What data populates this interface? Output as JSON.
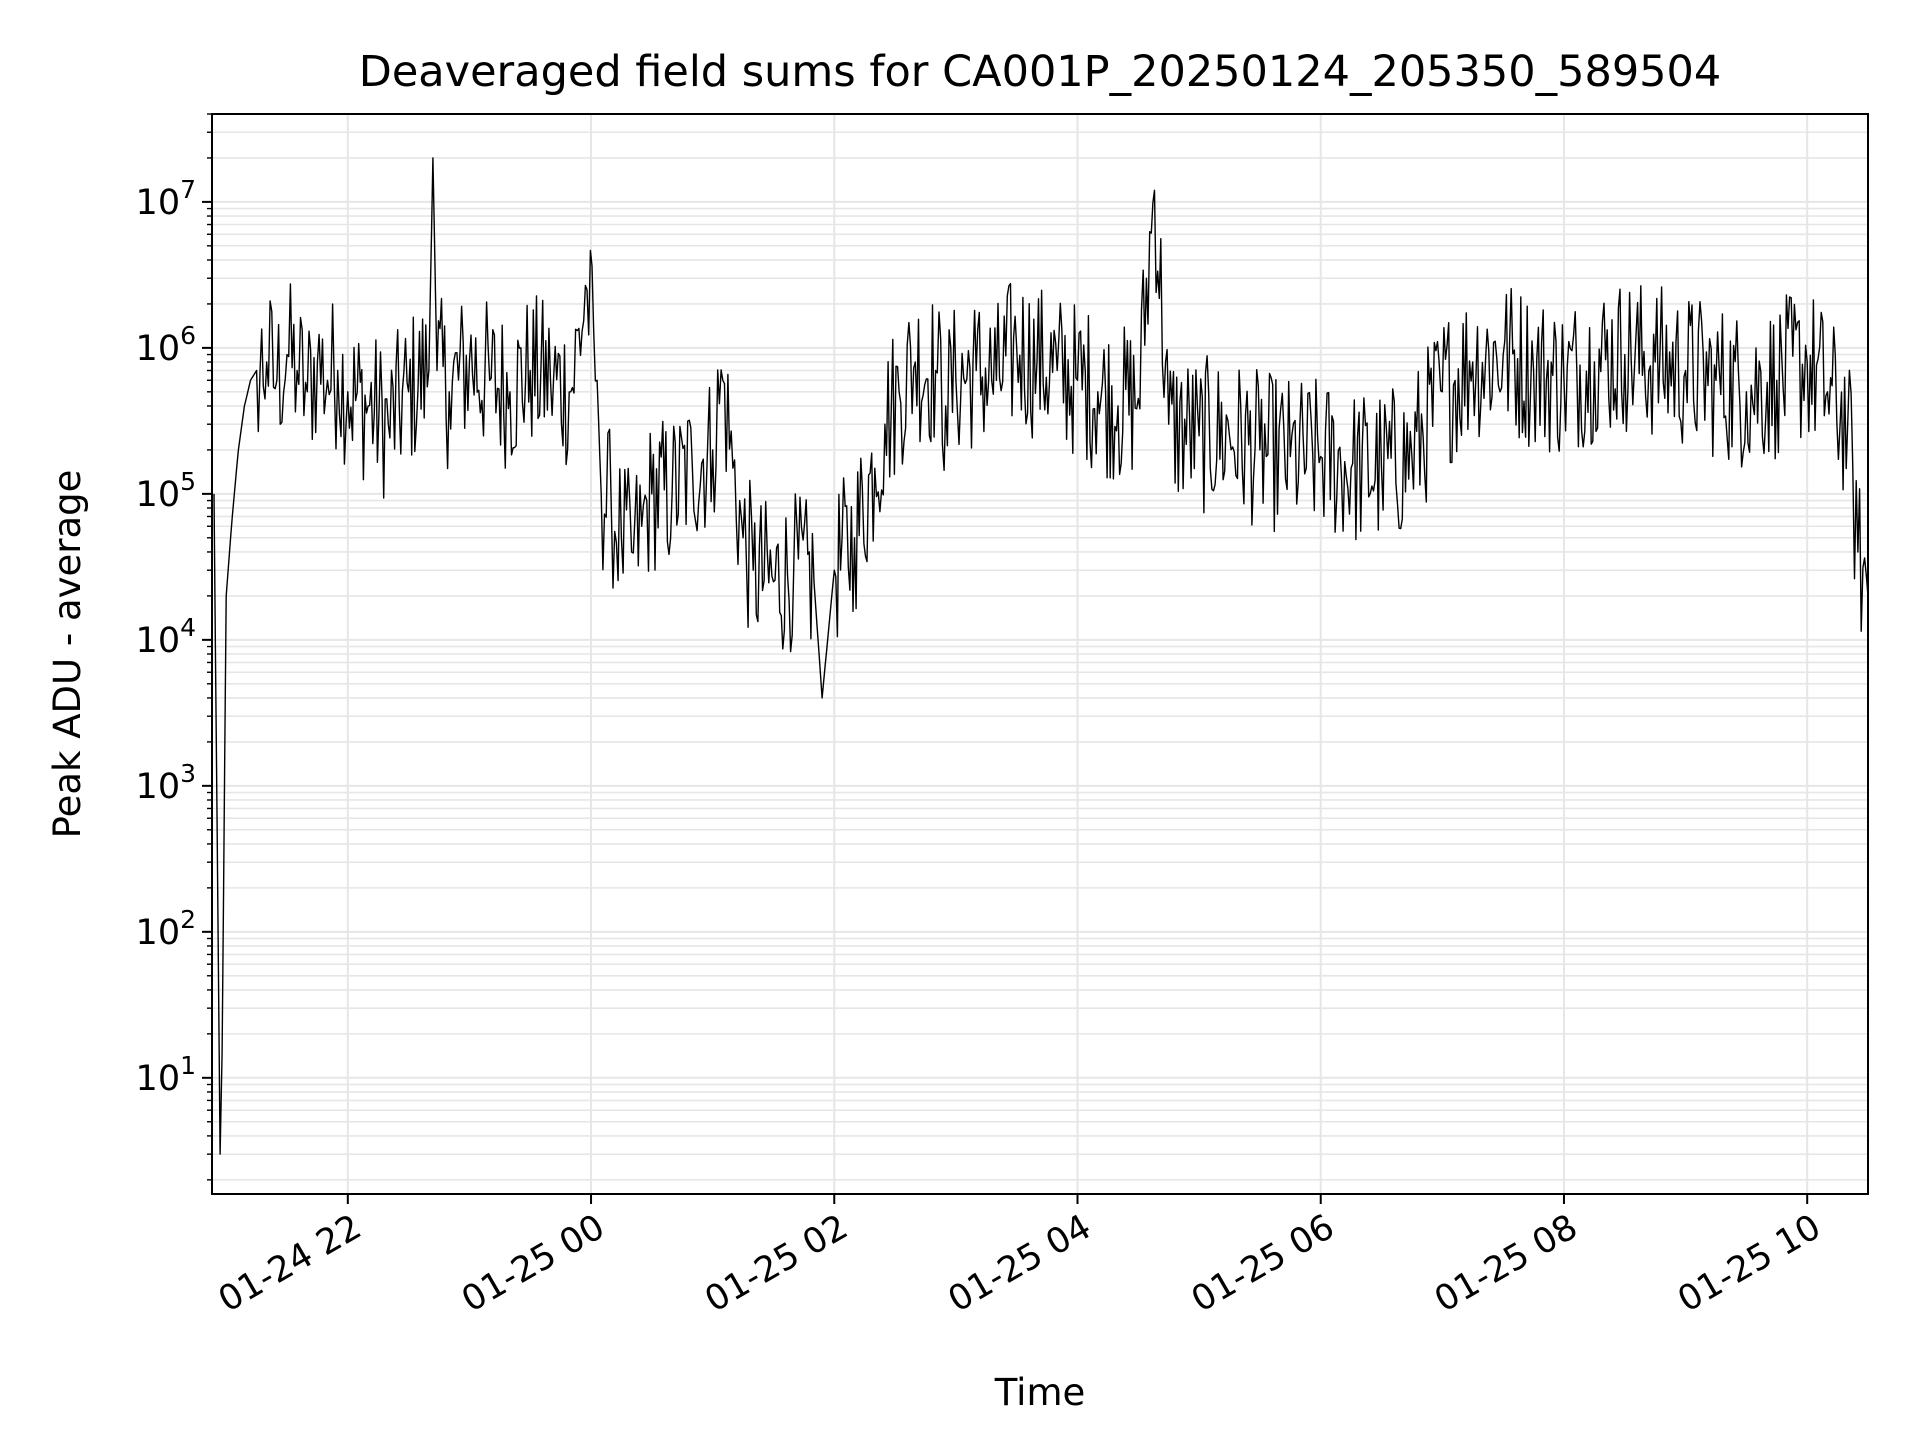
{
  "chart_data": {
    "type": "line",
    "title": "Deaveraged field sums for CA001P_20250124_205350_589504",
    "xlabel": "Time",
    "ylabel": "Peak ADU - average",
    "x_scale": "time",
    "y_scale": "log",
    "xlim": [
      "2025-01-24 20:53",
      "2025-01-25 10:30"
    ],
    "ylim": [
      1.6,
      40000000
    ],
    "grid": true,
    "legend": "none",
    "line_color": "#000000",
    "grid_color": "#e6e6e6",
    "x_ticks": [
      {
        "value": "2025-01-24 22:00",
        "label": "01-24 22"
      },
      {
        "value": "2025-01-25 00:00",
        "label": "01-25 00"
      },
      {
        "value": "2025-01-25 02:00",
        "label": "01-25 02"
      },
      {
        "value": "2025-01-25 04:00",
        "label": "01-25 04"
      },
      {
        "value": "2025-01-25 06:00",
        "label": "01-25 06"
      },
      {
        "value": "2025-01-25 08:00",
        "label": "01-25 08"
      },
      {
        "value": "2025-01-25 10:00",
        "label": "01-25 10"
      }
    ],
    "y_ticks": [
      {
        "value": 10,
        "base": "10",
        "exp": "1"
      },
      {
        "value": 100,
        "base": "10",
        "exp": "2"
      },
      {
        "value": 1000,
        "base": "10",
        "exp": "3"
      },
      {
        "value": 10000,
        "base": "10",
        "exp": "4"
      },
      {
        "value": 100000,
        "base": "10",
        "exp": "5"
      },
      {
        "value": 1000000,
        "base": "10",
        "exp": "6"
      },
      {
        "value": 10000000,
        "base": "10",
        "exp": "7"
      }
    ],
    "series": [
      {
        "x": [
          "2025-01-24 20:54",
          "2025-01-24 20:57",
          "2025-01-24 20:58",
          "2025-01-24 21:00",
          "2025-01-24 21:03",
          "2025-01-24 21:06",
          "2025-01-24 21:09",
          "2025-01-24 21:12",
          "2025-01-24 21:15",
          "2025-01-24 21:20",
          "2025-01-24 21:25",
          "2025-01-24 21:30",
          "2025-01-24 21:35",
          "2025-01-24 21:40",
          "2025-01-24 21:45",
          "2025-01-24 21:50",
          "2025-01-24 21:55",
          "2025-01-24 22:00",
          "2025-01-24 22:10",
          "2025-01-24 22:20",
          "2025-01-24 22:30",
          "2025-01-24 22:40",
          "2025-01-24 22:42",
          "2025-01-24 22:44",
          "2025-01-24 22:50",
          "2025-01-24 23:00",
          "2025-01-24 23:10",
          "2025-01-24 23:20",
          "2025-01-24 23:30",
          "2025-01-24 23:40",
          "2025-01-24 23:50",
          "2025-01-24 23:58",
          "2025-01-25 00:03",
          "2025-01-25 00:05",
          "2025-01-25 00:10",
          "2025-01-25 00:15",
          "2025-01-25 00:20",
          "2025-01-25 00:25",
          "2025-01-25 00:30",
          "2025-01-25 00:40",
          "2025-01-25 00:50",
          "2025-01-25 01:00",
          "2025-01-25 01:05",
          "2025-01-25 01:10",
          "2025-01-25 01:15",
          "2025-01-25 01:20",
          "2025-01-25 01:30",
          "2025-01-25 01:40",
          "2025-01-25 01:50",
          "2025-01-25 01:54",
          "2025-01-25 02:00",
          "2025-01-25 02:10",
          "2025-01-25 02:20",
          "2025-01-25 02:25",
          "2025-01-25 02:32",
          "2025-01-25 02:40",
          "2025-01-25 02:50",
          "2025-01-25 02:55",
          "2025-01-25 03:00",
          "2025-01-25 03:10",
          "2025-01-25 03:20",
          "2025-01-25 03:30",
          "2025-01-25 03:40",
          "2025-01-25 03:50",
          "2025-01-25 04:00",
          "2025-01-25 04:10",
          "2025-01-25 04:20",
          "2025-01-25 04:30",
          "2025-01-25 04:38",
          "2025-01-25 04:45",
          "2025-01-25 05:00",
          "2025-01-25 05:15",
          "2025-01-25 05:30",
          "2025-01-25 05:45",
          "2025-01-25 06:00",
          "2025-01-25 06:15",
          "2025-01-25 06:30",
          "2025-01-25 06:45",
          "2025-01-25 07:00",
          "2025-01-25 07:15",
          "2025-01-25 07:30",
          "2025-01-25 07:45",
          "2025-01-25 08:00",
          "2025-01-25 08:15",
          "2025-01-25 08:30",
          "2025-01-25 08:45",
          "2025-01-25 09:00",
          "2025-01-25 09:15",
          "2025-01-25 09:30",
          "2025-01-25 09:45",
          "2025-01-25 10:00",
          "2025-01-25 10:10",
          "2025-01-25 10:20",
          "2025-01-25 10:25",
          "2025-01-25 10:30"
        ],
        "y": [
          100000,
          3,
          15,
          20000,
          70000,
          200000,
          400000,
          600000,
          700000,
          800000,
          600000,
          900000,
          700000,
          500000,
          800000,
          600000,
          700000,
          500000,
          400000,
          300000,
          500000,
          700000,
          20000000,
          700000,
          500000,
          800000,
          600000,
          500000,
          700000,
          600000,
          500000,
          2500000,
          600000,
          100000,
          80000,
          50000,
          40000,
          60000,
          100000,
          100000,
          150000,
          200000,
          600000,
          150000,
          50000,
          30000,
          25000,
          30000,
          25000,
          4000,
          30000,
          50000,
          150000,
          300000,
          500000,
          800000,
          700000,
          400000,
          600000,
          700000,
          600000,
          1000000,
          800000,
          700000,
          600000,
          500000,
          400000,
          450000,
          12000000,
          300000,
          250000,
          250000,
          200000,
          180000,
          180000,
          150000,
          150000,
          180000,
          500000,
          800000,
          900000,
          700000,
          600000,
          800000,
          900000,
          800000,
          700000,
          600000,
          500000,
          600000,
          800000,
          500000,
          300000,
          40000,
          20000
        ]
      }
    ]
  }
}
